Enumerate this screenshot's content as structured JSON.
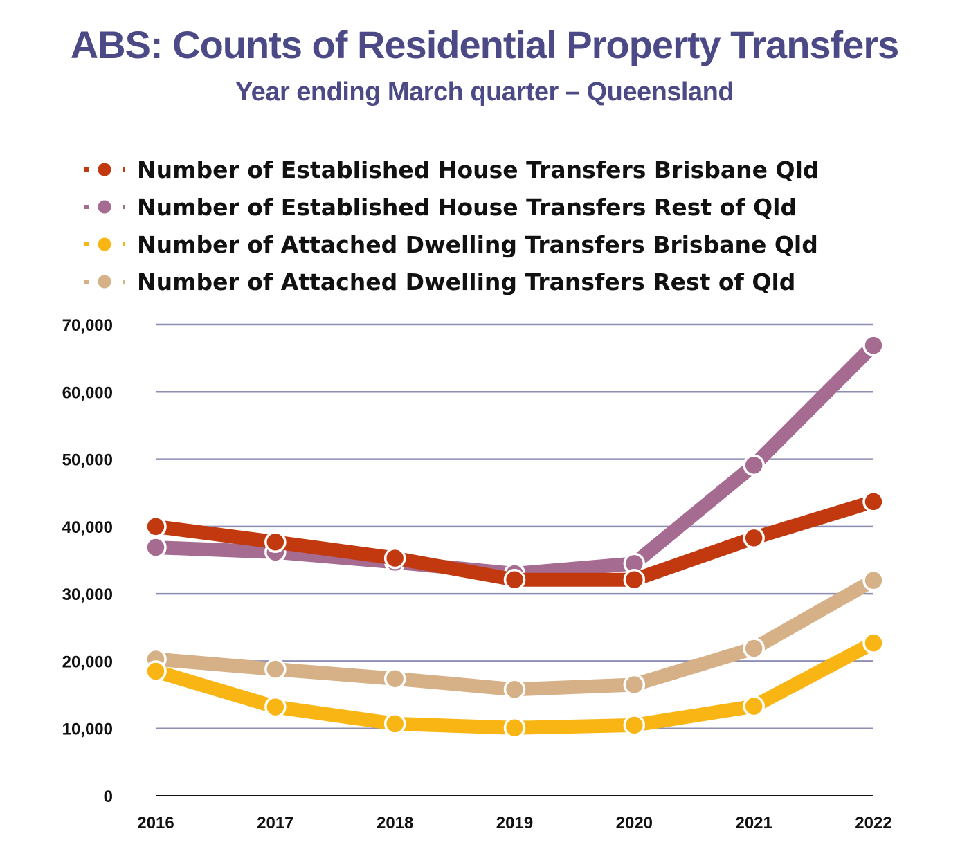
{
  "chart_data": {
    "type": "line",
    "title": "ABS: Counts of Residential Property Transfers",
    "subtitle": "Year ending March quarter – Queensland",
    "categories": [
      "2016",
      "2017",
      "2018",
      "2019",
      "2020",
      "2021",
      "2022"
    ],
    "ylim": [
      0,
      70000
    ],
    "yticks": [
      "0",
      "10,000",
      "20,000",
      "30,000",
      "40,000",
      "50,000",
      "60,000",
      "70,000"
    ],
    "grid": true,
    "legend_position": "top-left",
    "series": [
      {
        "name": "Number of Established House Transfers Brisbane Qld",
        "color": "#c2390f",
        "values": [
          40000,
          37700,
          35300,
          32100,
          32100,
          38300,
          43700
        ]
      },
      {
        "name": "Number of Established House Transfers Rest of Qld",
        "color": "#a56b90",
        "values": [
          36900,
          36200,
          34700,
          33000,
          34500,
          49100,
          66900
        ]
      },
      {
        "name": "Number of Attached Dwelling Transfers Brisbane Qld",
        "color": "#f8b514",
        "values": [
          18500,
          13200,
          10700,
          10100,
          10500,
          13300,
          22700
        ]
      },
      {
        "name": "Number of Attached Dwelling Transfers Rest of Qld",
        "color": "#d6b188",
        "values": [
          20300,
          18800,
          17400,
          15800,
          16500,
          21900,
          32000
        ]
      }
    ]
  }
}
